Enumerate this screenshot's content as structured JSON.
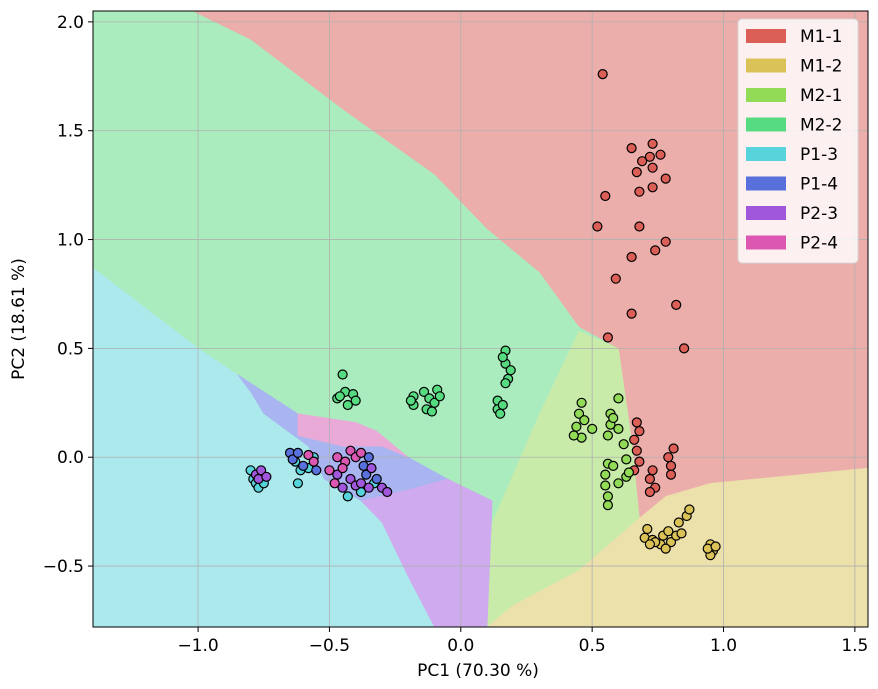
{
  "chart_data": {
    "type": "scatter",
    "title": "",
    "xlabel": "PC1 (70.30 %)",
    "ylabel": "PC2 (18.61 %)",
    "xlim": [
      -1.4,
      1.55
    ],
    "ylim": [
      -0.78,
      2.05
    ],
    "xticks": [
      -1.0,
      -0.5,
      0.0,
      0.5,
      1.0,
      1.5
    ],
    "xtick_labels": [
      "−1.0",
      "−0.5",
      "0.0",
      "0.5",
      "1.0",
      "1.5"
    ],
    "yticks": [
      -0.5,
      0.0,
      0.5,
      1.0,
      1.5,
      2.0
    ],
    "ytick_labels": [
      "−0.5",
      "0.0",
      "0.5",
      "1.0",
      "1.5",
      "2.0"
    ],
    "grid": true,
    "legend_position": "top-right",
    "colors": {
      "M1-1": "#db5f57",
      "M1-2": "#dbc257",
      "P1-3": "#57d3db",
      "P1-4": "#5770db",
      "M2-1": "#91db57",
      "M2-2": "#57db80",
      "P2-3": "#a157db",
      "P2-4": "#db57b2"
    },
    "regions": {
      "M1-1": [
        [
          -1.02,
          2.05
        ],
        [
          1.55,
          2.05
        ],
        [
          1.55,
          -0.05
        ],
        [
          0.95,
          -0.12
        ],
        [
          0.78,
          -0.18
        ],
        [
          0.68,
          -0.28
        ],
        [
          0.65,
          0.08
        ],
        [
          0.6,
          0.5
        ],
        [
          0.45,
          0.6
        ],
        [
          0.3,
          0.85
        ],
        [
          0.1,
          1.05
        ],
        [
          -0.1,
          1.3
        ],
        [
          -0.45,
          1.6
        ],
        [
          -0.8,
          1.92
        ]
      ],
      "M1-2": [
        [
          0.1,
          -0.78
        ],
        [
          0.2,
          -0.68
        ],
        [
          0.45,
          -0.52
        ],
        [
          0.68,
          -0.28
        ],
        [
          0.78,
          -0.18
        ],
        [
          0.95,
          -0.12
        ],
        [
          1.55,
          -0.05
        ],
        [
          1.55,
          -0.78
        ]
      ],
      "M2-1": [
        [
          0.1,
          -0.78
        ],
        [
          0.12,
          -0.3
        ],
        [
          0.3,
          0.2
        ],
        [
          0.45,
          0.58
        ],
        [
          0.6,
          0.5
        ],
        [
          0.65,
          0.08
        ],
        [
          0.68,
          -0.28
        ],
        [
          0.45,
          -0.52
        ],
        [
          0.2,
          -0.68
        ]
      ],
      "M2-2": [
        [
          -1.4,
          2.05
        ],
        [
          -1.02,
          2.05
        ],
        [
          -0.8,
          1.92
        ],
        [
          -0.45,
          1.6
        ],
        [
          -0.1,
          1.3
        ],
        [
          0.1,
          1.05
        ],
        [
          0.3,
          0.85
        ],
        [
          0.45,
          0.6
        ],
        [
          0.45,
          0.58
        ],
        [
          0.3,
          0.2
        ],
        [
          0.12,
          -0.3
        ],
        [
          0.1,
          -0.78
        ],
        [
          0.12,
          -0.2
        ],
        [
          -0.05,
          -0.1
        ],
        [
          -0.2,
          0.0
        ],
        [
          -0.32,
          0.12
        ],
        [
          -0.4,
          0.16
        ],
        [
          -0.62,
          0.2
        ],
        [
          -0.85,
          0.38
        ],
        [
          -1.0,
          0.5
        ],
        [
          -1.4,
          0.87
        ]
      ],
      "P1-3": [
        [
          -1.4,
          0.87
        ],
        [
          -1.0,
          0.5
        ],
        [
          -0.85,
          0.38
        ],
        [
          -0.8,
          0.3
        ],
        [
          -0.75,
          0.2
        ],
        [
          -0.58,
          0.05
        ],
        [
          -0.52,
          -0.1
        ],
        [
          -0.38,
          -0.2
        ],
        [
          -0.3,
          -0.3
        ],
        [
          -0.2,
          -0.55
        ],
        [
          -0.1,
          -0.78
        ],
        [
          -1.4,
          -0.78
        ]
      ],
      "P1-4": [
        [
          -0.85,
          0.38
        ],
        [
          -0.62,
          0.2
        ],
        [
          -0.62,
          0.1
        ],
        [
          -0.45,
          0.05
        ],
        [
          -0.3,
          0.05
        ],
        [
          -0.2,
          0.0
        ],
        [
          -0.05,
          -0.1
        ],
        [
          -0.2,
          -0.15
        ],
        [
          -0.38,
          -0.2
        ],
        [
          -0.52,
          -0.1
        ],
        [
          -0.58,
          0.05
        ],
        [
          -0.75,
          0.2
        ],
        [
          -0.8,
          0.3
        ]
      ],
      "P2-4": [
        [
          -0.62,
          0.1
        ],
        [
          -0.62,
          0.2
        ],
        [
          -0.4,
          0.16
        ],
        [
          -0.32,
          0.12
        ],
        [
          -0.2,
          0.0
        ],
        [
          -0.3,
          0.05
        ],
        [
          -0.45,
          0.05
        ]
      ],
      "P2-3": [
        [
          -0.38,
          -0.2
        ],
        [
          -0.2,
          -0.15
        ],
        [
          -0.05,
          -0.1
        ],
        [
          0.12,
          -0.2
        ],
        [
          0.1,
          -0.78
        ],
        [
          -0.1,
          -0.78
        ],
        [
          -0.2,
          -0.55
        ],
        [
          -0.3,
          -0.3
        ]
      ]
    },
    "region_colors": {
      "M1-1": "#ecaeab",
      "M1-2": "#ece0ab",
      "P1-3": "#abe9ec",
      "P1-4": "#a9b5f0",
      "M2-1": "#c8ebaa",
      "M2-2": "#abecbf",
      "P2-3": "#cfaaef",
      "P2-4": "#e9aad8"
    },
    "series": [
      {
        "name": "M1-1",
        "points": [
          [
            0.54,
            1.76
          ],
          [
            0.65,
            1.42
          ],
          [
            0.73,
            1.44
          ],
          [
            0.69,
            1.36
          ],
          [
            0.67,
            1.31
          ],
          [
            0.72,
            1.38
          ],
          [
            0.76,
            1.39
          ],
          [
            0.73,
            1.33
          ],
          [
            0.78,
            1.28
          ],
          [
            0.68,
            1.22
          ],
          [
            0.73,
            1.24
          ],
          [
            0.55,
            1.2
          ],
          [
            0.52,
            1.06
          ],
          [
            0.68,
            1.06
          ],
          [
            0.74,
            0.95
          ],
          [
            0.78,
            0.99
          ],
          [
            0.65,
            0.92
          ],
          [
            0.59,
            0.82
          ],
          [
            0.82,
            0.7
          ],
          [
            0.65,
            0.66
          ],
          [
            0.56,
            0.55
          ],
          [
            0.85,
            0.5
          ],
          [
            0.67,
            0.16
          ],
          [
            0.68,
            0.12
          ],
          [
            0.66,
            0.08
          ],
          [
            0.67,
            0.03
          ],
          [
            0.68,
            -0.02
          ],
          [
            0.66,
            -0.06
          ],
          [
            0.72,
            -0.1
          ],
          [
            0.74,
            -0.14
          ],
          [
            0.72,
            -0.16
          ],
          [
            0.73,
            -0.06
          ],
          [
            0.79,
            0.0
          ],
          [
            0.81,
            0.04
          ],
          [
            0.8,
            -0.04
          ],
          [
            0.8,
            -0.08
          ]
        ]
      },
      {
        "name": "M1-2",
        "points": [
          [
            0.95,
            -0.4
          ],
          [
            0.96,
            -0.43
          ],
          [
            0.95,
            -0.45
          ],
          [
            0.94,
            -0.42
          ],
          [
            0.97,
            -0.41
          ],
          [
            0.7,
            -0.37
          ],
          [
            0.73,
            -0.38
          ],
          [
            0.76,
            -0.4
          ],
          [
            0.77,
            -0.36
          ],
          [
            0.79,
            -0.34
          ],
          [
            0.8,
            -0.39
          ],
          [
            0.82,
            -0.36
          ],
          [
            0.84,
            -0.35
          ],
          [
            0.83,
            -0.3
          ],
          [
            0.86,
            -0.27
          ],
          [
            0.87,
            -0.24
          ],
          [
            0.78,
            -0.42
          ],
          [
            0.74,
            -0.39
          ],
          [
            0.71,
            -0.33
          ],
          [
            0.72,
            -0.4
          ]
        ]
      },
      {
        "name": "M2-1",
        "points": [
          [
            0.6,
            0.27
          ],
          [
            0.57,
            0.2
          ],
          [
            0.57,
            0.15
          ],
          [
            0.56,
            0.1
          ],
          [
            0.58,
            0.18
          ],
          [
            0.6,
            0.13
          ],
          [
            0.56,
            -0.03
          ],
          [
            0.55,
            -0.08
          ],
          [
            0.55,
            -0.13
          ],
          [
            0.56,
            -0.18
          ],
          [
            0.56,
            -0.22
          ],
          [
            0.58,
            -0.04
          ],
          [
            0.6,
            -0.12
          ],
          [
            0.62,
            0.06
          ],
          [
            0.63,
            -0.01
          ],
          [
            0.63,
            -0.09
          ],
          [
            0.64,
            -0.07
          ],
          [
            0.44,
            0.14
          ],
          [
            0.45,
            0.2
          ],
          [
            0.46,
            0.25
          ],
          [
            0.46,
            0.09
          ],
          [
            0.47,
            0.17
          ],
          [
            0.43,
            0.1
          ],
          [
            0.5,
            0.13
          ]
        ]
      },
      {
        "name": "M2-2",
        "points": [
          [
            0.17,
            0.49
          ],
          [
            0.17,
            0.43
          ],
          [
            0.18,
            0.36
          ],
          [
            0.19,
            0.4
          ],
          [
            0.17,
            0.34
          ],
          [
            0.16,
            0.46
          ],
          [
            0.14,
            0.26
          ],
          [
            0.14,
            0.22
          ],
          [
            0.15,
            0.2
          ],
          [
            0.16,
            0.24
          ],
          [
            -0.18,
            0.28
          ],
          [
            -0.18,
            0.24
          ],
          [
            -0.19,
            0.26
          ],
          [
            -0.14,
            0.3
          ],
          [
            -0.12,
            0.27
          ],
          [
            -0.13,
            0.22
          ],
          [
            -0.1,
            0.25
          ],
          [
            -0.09,
            0.31
          ],
          [
            -0.08,
            0.28
          ],
          [
            -0.11,
            0.21
          ],
          [
            -0.45,
            0.38
          ],
          [
            -0.44,
            0.3
          ],
          [
            -0.47,
            0.27
          ],
          [
            -0.43,
            0.24
          ],
          [
            -0.41,
            0.29
          ],
          [
            -0.4,
            0.26
          ],
          [
            -0.46,
            0.28
          ]
        ]
      },
      {
        "name": "P1-3",
        "points": [
          [
            -0.79,
            -0.1
          ],
          [
            -0.78,
            -0.12
          ],
          [
            -0.77,
            -0.14
          ],
          [
            -0.76,
            -0.08
          ],
          [
            -0.8,
            -0.06
          ],
          [
            -0.75,
            -0.12
          ],
          [
            -0.62,
            -0.12
          ],
          [
            -0.61,
            -0.06
          ],
          [
            -0.63,
            -0.02
          ],
          [
            -0.43,
            -0.18
          ],
          [
            -0.38,
            -0.16
          ],
          [
            -0.33,
            -0.12
          ],
          [
            -0.56,
            0.0
          ],
          [
            -0.58,
            -0.05
          ]
        ]
      },
      {
        "name": "P1-4",
        "points": [
          [
            -0.65,
            0.02
          ],
          [
            -0.64,
            -0.01
          ],
          [
            -0.62,
            0.02
          ],
          [
            -0.6,
            -0.04
          ],
          [
            -0.55,
            -0.06
          ],
          [
            -0.36,
            -0.08
          ],
          [
            -0.32,
            -0.1
          ],
          [
            -0.35,
            0.0
          ],
          [
            -0.37,
            -0.04
          ]
        ]
      },
      {
        "name": "P2-3",
        "points": [
          [
            -0.78,
            -0.08
          ],
          [
            -0.77,
            -0.1
          ],
          [
            -0.76,
            -0.06
          ],
          [
            -0.74,
            -0.09
          ],
          [
            -0.42,
            -0.1
          ],
          [
            -0.4,
            -0.13
          ],
          [
            -0.38,
            -0.12
          ],
          [
            -0.35,
            -0.14
          ],
          [
            -0.3,
            -0.14
          ],
          [
            -0.28,
            -0.16
          ],
          [
            -0.34,
            -0.05
          ],
          [
            -0.47,
            -0.08
          ],
          [
            -0.45,
            -0.14
          ]
        ]
      },
      {
        "name": "P2-4",
        "points": [
          [
            -0.58,
            0.01
          ],
          [
            -0.56,
            -0.02
          ],
          [
            -0.47,
            0.0
          ],
          [
            -0.44,
            -0.02
          ],
          [
            -0.42,
            0.03
          ],
          [
            -0.4,
            0.0
          ],
          [
            -0.38,
            0.02
          ],
          [
            -0.5,
            -0.06
          ],
          [
            -0.48,
            -0.12
          ],
          [
            -0.45,
            -0.05
          ]
        ]
      }
    ]
  }
}
